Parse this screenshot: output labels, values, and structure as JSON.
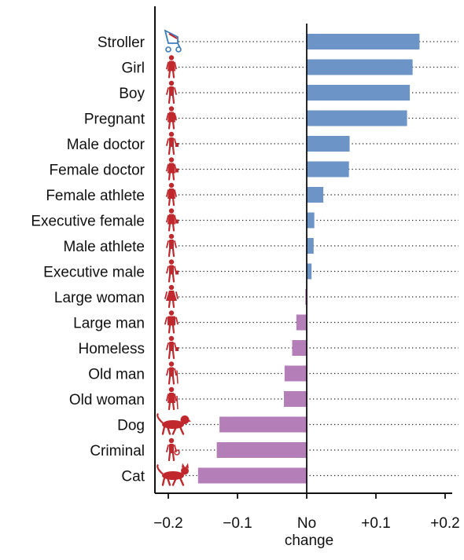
{
  "chart_data": {
    "type": "bar",
    "orientation": "horizontal",
    "categories": [
      "Stroller",
      "Girl",
      "Boy",
      "Pregnant",
      "Male doctor",
      "Female doctor",
      "Female athlete",
      "Executive female",
      "Male athlete",
      "Executive male",
      "Large woman",
      "Large man",
      "Homeless",
      "Old man",
      "Old woman",
      "Dog",
      "Criminal",
      "Cat"
    ],
    "values": [
      0.163,
      0.153,
      0.149,
      0.145,
      0.062,
      0.061,
      0.024,
      0.011,
      0.01,
      0.007,
      -0.002,
      -0.015,
      -0.021,
      -0.032,
      -0.033,
      -0.126,
      -0.13,
      -0.157
    ],
    "icons": [
      "stroller-icon",
      "girl-icon",
      "boy-icon",
      "pregnant-woman-icon",
      "male-doctor-icon",
      "female-doctor-icon",
      "female-athlete-icon",
      "executive-female-icon",
      "male-athlete-icon",
      "executive-male-icon",
      "large-woman-icon",
      "large-man-icon",
      "homeless-icon",
      "old-man-icon",
      "old-woman-icon",
      "dog-icon",
      "criminal-icon",
      "cat-icon"
    ],
    "xlim": [
      -0.22,
      0.2
    ],
    "xticks": [
      -0.2,
      -0.1,
      0,
      0.1,
      0.2
    ],
    "xtick_labels": [
      "−0.2",
      "−0.1",
      "No",
      "+0.1",
      "+0.2"
    ],
    "xlabel": "change",
    "grid": "dotted row lines",
    "colors": {
      "positive": "#6d94c6",
      "negative": "#b47fb8",
      "icon": "#c0282d",
      "stroller_icon": "#3a7bbd"
    }
  }
}
